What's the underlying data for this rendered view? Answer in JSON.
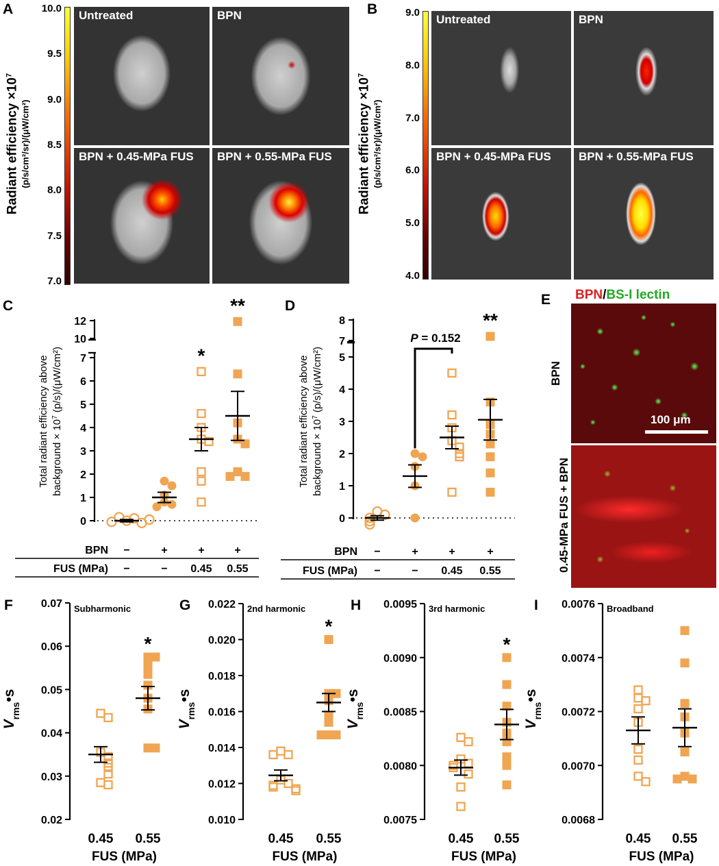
{
  "panel_letters": [
    "A",
    "B",
    "C",
    "D",
    "E",
    "F",
    "G",
    "H",
    "I"
  ],
  "panel_a": {
    "cbar_ticks": [
      "10.0",
      "9.5",
      "9.0",
      "8.5",
      "8.0",
      "7.5",
      "7.0"
    ],
    "ylabel_line1": "Radiant efficiency ×10",
    "ylabel_exp": "7",
    "ylabel_line2": "(p/s/cm²/sr)/(μW/cm²)",
    "images": [
      "Untreated",
      "BPN",
      "BPN + 0.45-MPa FUS",
      "BPN + 0.55-MPa FUS"
    ]
  },
  "panel_b": {
    "cbar_ticks": [
      "9.0",
      "8.0",
      "7.0",
      "6.0",
      "5.0",
      "4.0"
    ],
    "ylabel_line1": "Radiant efficiency ×10",
    "ylabel_exp": "7",
    "ylabel_line2": "(p/s/cm²/sr)/(μW/cm²)",
    "images": [
      "Untreated",
      "BPN",
      "BPN + 0.45-MPa FUS",
      "BPN + 0.55-MPa FUS"
    ]
  },
  "panel_e": {
    "title_red": "BPN",
    "title_sep": "/",
    "title_green": "BS-I lectin",
    "top_label": "BPN",
    "bottom_label": "0.45-MPa FUS + BPN",
    "scale_bar": "100 μm"
  },
  "chart_data": [
    {
      "panel": "C",
      "type": "scatter",
      "ylabel_line1": "Total radiant efficiency above",
      "ylabel_line2": "background × 10",
      "ylabel_exp": "7",
      "ylabel_line3": " (p/s)/(μW/cm²)",
      "yticks_low": [
        "0",
        "1",
        "2",
        "3",
        "4",
        "5",
        "6",
        "7"
      ],
      "yticks_high": [
        "10",
        "12"
      ],
      "row_labels": [
        "BPN",
        "FUS (MPa)"
      ],
      "bpn_row": [
        "−",
        "+",
        "+",
        "+"
      ],
      "fus_row": [
        "−",
        "−",
        "0.45",
        "0.55"
      ],
      "groups": [
        {
          "name": "Untreated",
          "marker": "circle-open",
          "values": [
            0,
            0.1,
            0.15,
            -0.1,
            -0.05,
            0.05
          ],
          "mean": 0,
          "sem": 0.05
        },
        {
          "name": "BPN",
          "marker": "circle-filled",
          "values": [
            1.7,
            1.5,
            1.1,
            0.8,
            0.7,
            0.6
          ],
          "mean": 1.0,
          "sem": 0.22
        },
        {
          "name": "BPN + 0.45 MPa FUS",
          "marker": "square-open",
          "values": [
            6.4,
            4.6,
            4.0,
            3.5,
            3.4,
            2.1,
            1.7,
            0.8
          ],
          "mean": 3.5,
          "sem": 0.5,
          "annotation": "*"
        },
        {
          "name": "BPN + 0.55 MPa FUS",
          "marker": "square-filled",
          "values": [
            11.9,
            6.3,
            4.2,
            3.5,
            3.3,
            2.1,
            1.9,
            1.9
          ],
          "mean": 4.5,
          "sem": 1.05,
          "annotation": "**"
        }
      ]
    },
    {
      "panel": "D",
      "type": "scatter",
      "ylabel_line1": "Total radiant efficiency above",
      "ylabel_line2": "background × 10",
      "ylabel_exp": "7",
      "ylabel_line3": " (p/s)/(μW/cm²)",
      "yticks_low": [
        "0",
        "1",
        "2",
        "3",
        "4",
        "5"
      ],
      "yticks_high": [
        "7",
        "8"
      ],
      "row_labels": [
        "BPN",
        "FUS (MPa)"
      ],
      "bpn_row": [
        "−",
        "+",
        "+",
        "+"
      ],
      "fus_row": [
        "−",
        "−",
        "0.45",
        "0.55"
      ],
      "pvalue_label": "P",
      "pvalue_text": " = 0.152",
      "groups": [
        {
          "name": "Untreated",
          "marker": "circle-open",
          "values": [
            0.2,
            0.1,
            0,
            -0.1,
            -0.2
          ],
          "mean": 0,
          "sem": 0.07
        },
        {
          "name": "BPN",
          "marker": "circle-filled",
          "values": [
            2.0,
            1.9,
            1.6,
            1.0,
            0
          ],
          "mean": 1.3,
          "sem": 0.35
        },
        {
          "name": "BPN + 0.45 MPa FUS",
          "marker": "square-open",
          "values": [
            4.5,
            3.2,
            2.8,
            2.4,
            2.2,
            2.0,
            1.9,
            0.8
          ],
          "mean": 2.5,
          "sem": 0.35
        },
        {
          "name": "BPN + 0.55 MPa FUS",
          "marker": "square-filled",
          "values": [
            7.2,
            3.6,
            2.9,
            2.6,
            2.3,
            1.9,
            1.4,
            0.8
          ],
          "mean": 3.05,
          "sem": 0.63,
          "annotation": "**"
        }
      ]
    },
    {
      "panel": "F",
      "type": "scatter",
      "title": "Subharmonic",
      "ylabel": "V",
      "ylabel_sub": "rms",
      "ylabel_tail": "•s",
      "yticks": [
        "0.02",
        "0.03",
        "0.04",
        "0.05",
        "0.06",
        "0.07"
      ],
      "ylim": [
        0.02,
        0.07
      ],
      "xlabel": "FUS (MPa)",
      "categories": [
        "0.45",
        "0.55"
      ],
      "groups": [
        {
          "name": "0.45",
          "marker": "square-open",
          "values": [
            0.0445,
            0.0435,
            0.0355,
            0.0345,
            0.033,
            0.032,
            0.0305,
            0.0285,
            0.028
          ],
          "mean": 0.035,
          "sem": 0.0018
        },
        {
          "name": "0.55",
          "marker": "square-filled",
          "values": [
            0.0575,
            0.0575,
            0.0555,
            0.0535,
            0.051,
            0.048,
            0.0455,
            0.0365,
            0.0365
          ],
          "mean": 0.048,
          "sem": 0.0027,
          "annotation": "*"
        }
      ]
    },
    {
      "panel": "G",
      "type": "scatter",
      "title": "2nd harmonic",
      "ylabel": "V",
      "ylabel_sub": "rms",
      "ylabel_tail": "•s",
      "yticks": [
        "0.010",
        "0.012",
        "0.014",
        "0.016",
        "0.018",
        "0.020",
        "0.022"
      ],
      "ylim": [
        0.01,
        0.022
      ],
      "xlabel": "FUS (MPa)",
      "categories": [
        "0.45",
        "0.55"
      ],
      "groups": [
        {
          "name": "0.45",
          "marker": "square-open",
          "values": [
            0.0138,
            0.0136,
            0.0136,
            0.0122,
            0.012,
            0.0119,
            0.0118,
            0.0117,
            0.0116
          ],
          "mean": 0.01245,
          "sem": 0.0003
        },
        {
          "name": "0.55",
          "marker": "square-filled",
          "values": [
            0.02,
            0.017,
            0.017,
            0.0166,
            0.0158,
            0.0154,
            0.0147,
            0.0147,
            0.0147
          ],
          "mean": 0.0165,
          "sem": 0.0005,
          "annotation": "*"
        }
      ]
    },
    {
      "panel": "H",
      "type": "scatter",
      "title": "3rd harmonic",
      "ylabel": "V",
      "ylabel_sub": "rms",
      "ylabel_tail": "•s",
      "yticks": [
        "0.0075",
        "0.0080",
        "0.0085",
        "0.0090",
        "0.0095"
      ],
      "ylim": [
        0.0075,
        0.0095
      ],
      "xlabel": "FUS (MPa)",
      "categories": [
        "0.45",
        "0.55"
      ],
      "groups": [
        {
          "name": "0.45",
          "marker": "square-open",
          "values": [
            0.00826,
            0.00822,
            0.00806,
            0.00802,
            0.008,
            0.00798,
            0.00792,
            0.0078,
            0.00762
          ],
          "mean": 0.00798,
          "sem": 7e-05
        },
        {
          "name": "0.55",
          "marker": "square-filled",
          "values": [
            0.009,
            0.00875,
            0.00855,
            0.0084,
            0.0083,
            0.00822,
            0.00808,
            0.008,
            0.00782
          ],
          "mean": 0.00838,
          "sem": 0.00014,
          "annotation": "*"
        }
      ]
    },
    {
      "panel": "I",
      "type": "scatter",
      "title": "Broadband",
      "ylabel": "V",
      "ylabel_sub": "rms",
      "ylabel_tail": "•s",
      "yticks": [
        "0.0068",
        "0.0070",
        "0.0072",
        "0.0074",
        "0.0076"
      ],
      "ylim": [
        0.0068,
        0.0076
      ],
      "xlabel": "FUS (MPa)",
      "categories": [
        "0.45",
        "0.55"
      ],
      "groups": [
        {
          "name": "0.45",
          "marker": "square-open",
          "values": [
            0.00728,
            0.00725,
            0.00724,
            0.00721,
            0.00716,
            0.00706,
            0.00702,
            0.00696,
            0.00694
          ],
          "mean": 0.00713,
          "sem": 5e-05
        },
        {
          "name": "0.55",
          "marker": "square-filled",
          "values": [
            0.0075,
            0.00738,
            0.00723,
            0.00718,
            0.00712,
            0.00705,
            0.00696,
            0.00695,
            0.00695
          ],
          "mean": 0.00714,
          "sem": 7e-05
        }
      ]
    }
  ]
}
